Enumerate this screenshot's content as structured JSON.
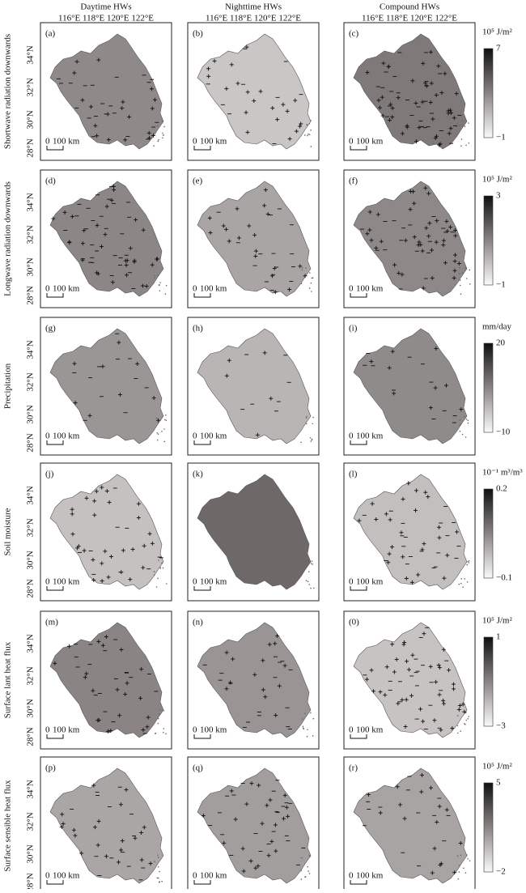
{
  "columns": [
    {
      "title": "Daytime HWs",
      "lon_labels": "116°E 118°E 120°E 122°E"
    },
    {
      "title": "Nighttime HWs",
      "lon_labels": "116°E 118°E 120°E 122°E"
    },
    {
      "title": "Compound HWs",
      "lon_labels": "116°E 118°E 120°E 122°E"
    }
  ],
  "lat_labels": [
    "34°N",
    "32°N",
    "30°N",
    "28°N"
  ],
  "scale_bar": {
    "zero": "0",
    "distance": "100 km"
  },
  "rows": [
    {
      "label": "Shortwave radiation downwards",
      "panels": [
        "(a)",
        "(b)",
        "(c)"
      ],
      "colorbar": {
        "unit": "10⁵ J/m²",
        "max": "7",
        "min": "−1"
      }
    },
    {
      "label": "Longwave radiation downwards",
      "panels": [
        "(d)",
        "(e)",
        "(f)"
      ],
      "colorbar": {
        "unit": "10⁵ J/m²",
        "max": "3",
        "min": "−1"
      }
    },
    {
      "label": "Precipitation",
      "panels": [
        "(g)",
        "(h)",
        "(i)"
      ],
      "colorbar": {
        "unit": "mm/day",
        "max": "20",
        "min": "−10"
      }
    },
    {
      "label": "Soil moisture",
      "panels": [
        "(j)",
        "(k)",
        "(l)"
      ],
      "colorbar": {
        "unit": "10⁻¹ m³/m³",
        "max": "0.2",
        "min": "−0.1"
      }
    },
    {
      "label": "Surface lant heat flux",
      "panels": [
        "(m)",
        "(n)",
        "(0)"
      ],
      "colorbar": {
        "unit": "10⁵ J/m²",
        "max": "1",
        "min": "−3"
      }
    },
    {
      "label": "Surface sensible heat flux",
      "panels": [
        "(p)",
        "(q)",
        "(r)"
      ],
      "colorbar": {
        "unit": "10⁵ J/m²",
        "max": "5",
        "min": "−2"
      }
    }
  ]
}
